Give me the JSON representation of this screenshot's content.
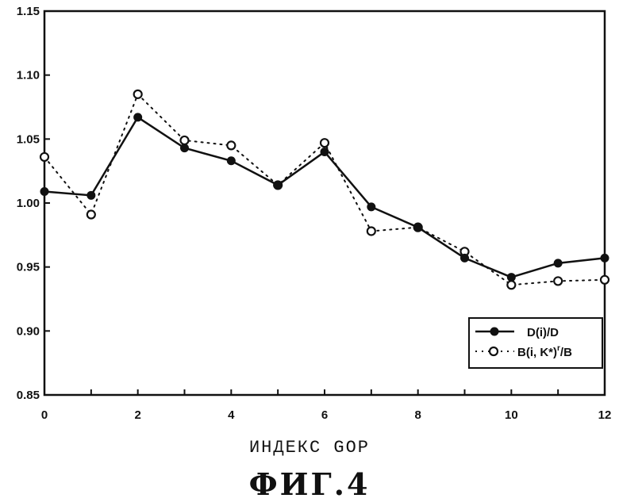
{
  "chart_data": {
    "type": "line",
    "x": [
      0,
      1,
      2,
      3,
      4,
      5,
      6,
      7,
      8,
      9,
      10,
      11,
      12
    ],
    "series": [
      {
        "name": "D(i)/D",
        "style": "solid-filled-circle",
        "values": [
          1.009,
          1.006,
          1.067,
          1.043,
          1.033,
          1.014,
          1.04,
          0.997,
          0.981,
          0.957,
          0.942,
          0.953,
          0.957
        ]
      },
      {
        "name": "B(i, K*)^r/B",
        "style": "dotted-open-circle",
        "values": [
          1.036,
          0.991,
          1.085,
          1.049,
          1.045,
          1.014,
          1.047,
          0.978,
          0.981,
          0.962,
          0.936,
          0.939,
          0.94
        ]
      }
    ],
    "xlabel": "ИНДЕКС GOP",
    "ylabel": "",
    "xlim": [
      0,
      12
    ],
    "ylim": [
      0.85,
      1.15
    ],
    "xticks": [
      "0",
      "2",
      "4",
      "6",
      "8",
      "10",
      "12"
    ],
    "yticks": [
      "0.85",
      "0.90",
      "0.95",
      "1.00",
      "1.05",
      "1.10",
      "1.15"
    ],
    "legend_position": "bottom-right",
    "grid": false
  },
  "legend": {
    "item1": "D(i)/D",
    "item2_main": "B(i, K*)",
    "item2_sup": "r",
    "item2_tail": "/B"
  },
  "figure": {
    "xlabel": "ИНДЕКС GOP",
    "caption": "ФИГ.4"
  },
  "colors": {
    "ink": "#111111",
    "background": "#ffffff"
  }
}
